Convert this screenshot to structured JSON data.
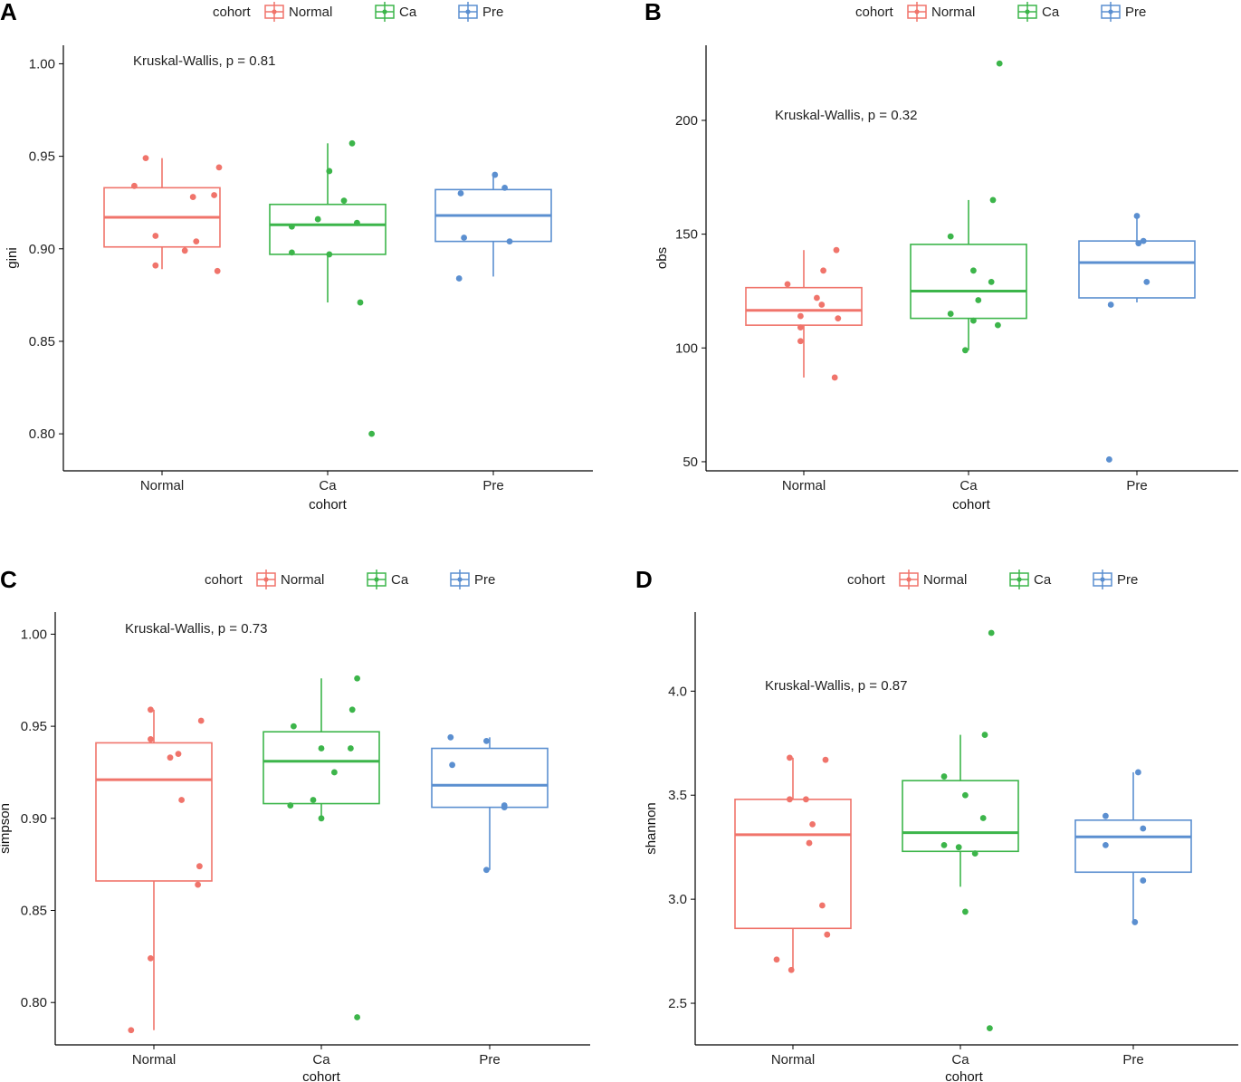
{
  "chart_data": [
    {
      "panel": "A",
      "type": "box",
      "xlabel": "cohort",
      "ylabel": "gini",
      "categories": [
        "Normal",
        "Ca",
        "Pre"
      ],
      "ylim": [
        0.78,
        1.01
      ],
      "yticks": [
        0.8,
        0.85,
        0.9,
        0.95,
        1.0
      ],
      "ytick_labels": [
        "0.80",
        "0.85",
        "0.90",
        "0.95",
        "1.00"
      ],
      "annotation": "Kruskal-Wallis, p = 0.81",
      "legend": {
        "title": "cohort",
        "entries": [
          "Normal",
          "Ca",
          "Pre"
        ]
      },
      "boxes": [
        {
          "name": "Normal",
          "whisker_low": 0.889,
          "q1": 0.901,
          "median": 0.917,
          "q3": 0.933,
          "whisker_high": 0.949
        },
        {
          "name": "Ca",
          "whisker_low": 0.871,
          "q1": 0.897,
          "median": 0.913,
          "q3": 0.924,
          "whisker_high": 0.957
        },
        {
          "name": "Pre",
          "whisker_low": 0.885,
          "q1": 0.904,
          "median": 0.918,
          "q3": 0.932,
          "whisker_high": 0.94
        }
      ],
      "points": [
        [
          [
            -0.1,
            0.949
          ],
          [
            -0.17,
            0.934
          ],
          [
            0.35,
            0.944
          ],
          [
            0.19,
            0.928
          ],
          [
            0.32,
            0.929
          ],
          [
            -0.04,
            0.907
          ],
          [
            0.21,
            0.904
          ],
          [
            0.14,
            0.899
          ],
          [
            -0.04,
            0.891
          ],
          [
            0.34,
            0.888
          ]
        ],
        [
          [
            0.15,
            0.957
          ],
          [
            0.01,
            0.942
          ],
          [
            0.1,
            0.926
          ],
          [
            -0.06,
            0.916
          ],
          [
            -0.22,
            0.912
          ],
          [
            0.18,
            0.914
          ],
          [
            -0.22,
            0.898
          ],
          [
            0.01,
            0.897
          ],
          [
            0.2,
            0.871
          ],
          [
            0.27,
            0.8
          ]
        ],
        [
          [
            0.01,
            0.94
          ],
          [
            -0.2,
            0.93
          ],
          [
            0.07,
            0.933
          ],
          [
            -0.18,
            0.906
          ],
          [
            0.1,
            0.904
          ],
          [
            -0.21,
            0.884
          ]
        ]
      ]
    },
    {
      "panel": "B",
      "type": "box",
      "xlabel": "cohort",
      "ylabel": "obs",
      "categories": [
        "Normal",
        "Ca",
        "Pre"
      ],
      "ylim": [
        46,
        233
      ],
      "yticks": [
        50,
        100,
        150,
        200
      ],
      "ytick_labels": [
        "50",
        "100",
        "150",
        "200"
      ],
      "annotation": "Kruskal-Wallis, p = 0.32",
      "legend": {
        "title": "cohort",
        "entries": [
          "Normal",
          "Ca",
          "Pre"
        ]
      },
      "boxes": [
        {
          "name": "Normal",
          "whisker_low": 87,
          "q1": 110,
          "median": 116.5,
          "q3": 126.5,
          "whisker_high": 143
        },
        {
          "name": "Ca",
          "whisker_low": 99,
          "q1": 113,
          "median": 125,
          "q3": 145.5,
          "whisker_high": 165
        },
        {
          "name": "Pre",
          "whisker_low": 120,
          "q1": 122,
          "median": 137.5,
          "q3": 147,
          "whisker_high": 158
        }
      ],
      "points": [
        [
          [
            0.2,
            143
          ],
          [
            0.12,
            134
          ],
          [
            -0.1,
            128
          ],
          [
            0.08,
            122
          ],
          [
            0.11,
            119
          ],
          [
            -0.02,
            114
          ],
          [
            0.21,
            113
          ],
          [
            -0.02,
            109
          ],
          [
            -0.02,
            103
          ],
          [
            0.19,
            87
          ]
        ],
        [
          [
            0.19,
            225
          ],
          [
            0.15,
            165
          ],
          [
            -0.11,
            149
          ],
          [
            0.03,
            134
          ],
          [
            0.14,
            129
          ],
          [
            0.06,
            121
          ],
          [
            -0.11,
            115
          ],
          [
            0.03,
            112
          ],
          [
            0.18,
            110
          ],
          [
            -0.02,
            99
          ]
        ],
        [
          [
            0.0,
            158
          ],
          [
            0.04,
            147
          ],
          [
            0.01,
            146
          ],
          [
            0.06,
            129
          ],
          [
            -0.16,
            119
          ],
          [
            -0.17,
            51
          ]
        ]
      ]
    },
    {
      "panel": "C",
      "type": "box",
      "xlabel": "cohort",
      "ylabel": "simpson",
      "categories": [
        "Normal",
        "Ca",
        "Pre"
      ],
      "ylim": [
        0.777,
        1.012
      ],
      "yticks": [
        0.8,
        0.85,
        0.9,
        0.95,
        1.0
      ],
      "ytick_labels": [
        "0.80",
        "0.85",
        "0.90",
        "0.95",
        "1.00"
      ],
      "annotation": "Kruskal-Wallis, p = 0.73",
      "legend": {
        "title": "cohort",
        "entries": [
          "Normal",
          "Ca",
          "Pre"
        ]
      },
      "boxes": [
        {
          "name": "Normal",
          "whisker_low": 0.785,
          "q1": 0.866,
          "median": 0.921,
          "q3": 0.941,
          "whisker_high": 0.959
        },
        {
          "name": "Ca",
          "whisker_low": 0.9,
          "q1": 0.908,
          "median": 0.931,
          "q3": 0.947,
          "whisker_high": 0.976
        },
        {
          "name": "Pre",
          "whisker_low": 0.872,
          "q1": 0.906,
          "median": 0.918,
          "q3": 0.938,
          "whisker_high": 0.944
        }
      ],
      "points": [
        [
          [
            -0.02,
            0.959
          ],
          [
            0.29,
            0.953
          ],
          [
            -0.02,
            0.943
          ],
          [
            0.15,
            0.935
          ],
          [
            0.1,
            0.933
          ],
          [
            0.17,
            0.91
          ],
          [
            0.28,
            0.874
          ],
          [
            0.27,
            0.864
          ],
          [
            -0.02,
            0.824
          ],
          [
            -0.14,
            0.785
          ]
        ],
        [
          [
            0.22,
            0.976
          ],
          [
            -0.17,
            0.95
          ],
          [
            0.19,
            0.959
          ],
          [
            0.0,
            0.938
          ],
          [
            0.18,
            0.938
          ],
          [
            0.08,
            0.925
          ],
          [
            -0.05,
            0.91
          ],
          [
            -0.19,
            0.907
          ],
          [
            0.0,
            0.9
          ],
          [
            0.22,
            0.792
          ]
        ],
        [
          [
            -0.24,
            0.944
          ],
          [
            -0.02,
            0.942
          ],
          [
            -0.23,
            0.929
          ],
          [
            0.09,
            0.907
          ],
          [
            0.09,
            0.906
          ],
          [
            -0.02,
            0.872
          ]
        ]
      ]
    },
    {
      "panel": "D",
      "type": "box",
      "xlabel": "cohort",
      "ylabel": "shannon",
      "categories": [
        "Normal",
        "Ca",
        "Pre"
      ],
      "ylim": [
        2.3,
        4.38
      ],
      "yticks": [
        2.5,
        3.0,
        3.5,
        4.0
      ],
      "ytick_labels": [
        "2.5",
        "3.0",
        "3.5",
        "4.0"
      ],
      "annotation": "Kruskal-Wallis, p = 0.87",
      "legend": {
        "title": "cohort",
        "entries": [
          "Normal",
          "Ca",
          "Pre"
        ]
      },
      "boxes": [
        {
          "name": "Normal",
          "whisker_low": 2.66,
          "q1": 2.86,
          "median": 3.31,
          "q3": 3.48,
          "whisker_high": 3.68
        },
        {
          "name": "Ca",
          "whisker_low": 3.06,
          "q1": 3.23,
          "median": 3.32,
          "q3": 3.57,
          "whisker_high": 3.79
        },
        {
          "name": "Pre",
          "whisker_low": 2.89,
          "q1": 3.13,
          "median": 3.3,
          "q3": 3.38,
          "whisker_high": 3.61
        }
      ],
      "points": [
        [
          [
            -0.02,
            3.68
          ],
          [
            0.2,
            3.67
          ],
          [
            -0.02,
            3.48
          ],
          [
            0.08,
            3.48
          ],
          [
            0.12,
            3.36
          ],
          [
            0.1,
            3.27
          ],
          [
            0.18,
            2.97
          ],
          [
            0.21,
            2.83
          ],
          [
            -0.1,
            2.71
          ],
          [
            -0.01,
            2.66
          ]
        ],
        [
          [
            0.19,
            4.28
          ],
          [
            0.15,
            3.79
          ],
          [
            -0.1,
            3.59
          ],
          [
            0.03,
            3.5
          ],
          [
            0.14,
            3.39
          ],
          [
            -0.1,
            3.26
          ],
          [
            -0.01,
            3.25
          ],
          [
            0.09,
            3.22
          ],
          [
            0.03,
            2.94
          ],
          [
            0.18,
            2.38
          ]
        ],
        [
          [
            0.03,
            3.61
          ],
          [
            -0.17,
            3.4
          ],
          [
            -0.17,
            3.26
          ],
          [
            0.06,
            3.34
          ],
          [
            0.06,
            3.09
          ],
          [
            0.01,
            2.89
          ]
        ]
      ]
    }
  ],
  "colors": {
    "Normal": "#F0746B",
    "Ca": "#3CB54A",
    "Pre": "#5B8FD0"
  }
}
